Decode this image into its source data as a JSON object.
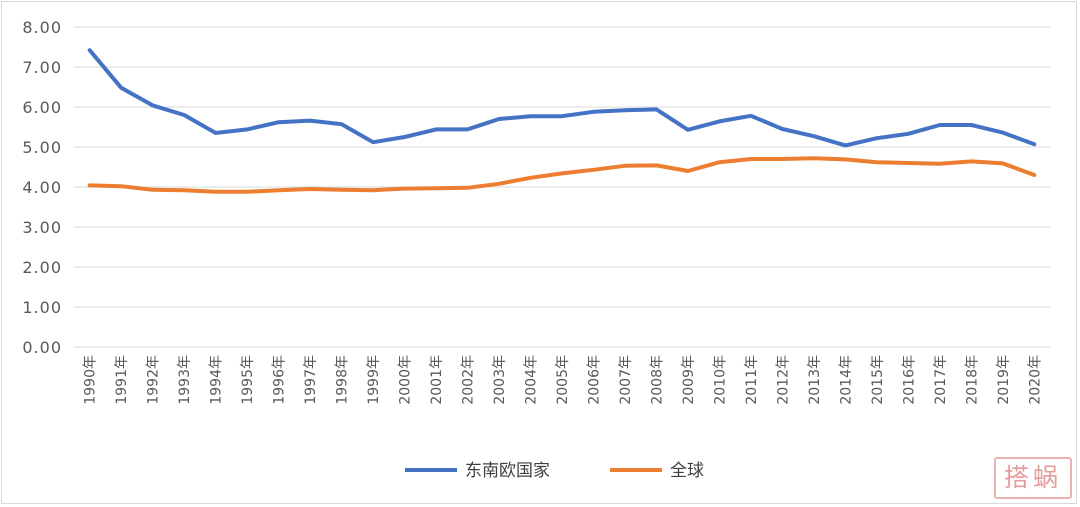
{
  "chart_data": {
    "type": "line",
    "categories": [
      "1990年",
      "1991年",
      "1992年",
      "1993年",
      "1994年",
      "1995年",
      "1996年",
      "1997年",
      "1998年",
      "1999年",
      "2000年",
      "2001年",
      "2002年",
      "2003年",
      "2004年",
      "2005年",
      "2006年",
      "2007年",
      "2008年",
      "2009年",
      "2010年",
      "2011年",
      "2012年",
      "2013年",
      "2014年",
      "2015年",
      "2016年",
      "2017年",
      "2018年",
      "2019年",
      "2020年"
    ],
    "series": [
      {
        "name": "东南欧国家",
        "color": "#4472c4",
        "values": [
          7.42,
          6.48,
          6.04,
          5.8,
          5.35,
          5.44,
          5.62,
          5.66,
          5.57,
          5.12,
          5.25,
          5.44,
          5.44,
          5.7,
          5.77,
          5.77,
          5.88,
          5.92,
          5.94,
          5.43,
          5.64,
          5.78,
          5.45,
          5.27,
          5.04,
          5.22,
          5.33,
          5.55,
          5.55,
          5.36,
          5.07
        ]
      },
      {
        "name": "全球",
        "color": "#ed7d31",
        "values": [
          4.04,
          4.02,
          3.93,
          3.92,
          3.88,
          3.88,
          3.92,
          3.95,
          3.93,
          3.92,
          3.96,
          3.97,
          3.98,
          4.08,
          4.23,
          4.34,
          4.43,
          4.53,
          4.54,
          4.4,
          4.62,
          4.7,
          4.7,
          4.72,
          4.69,
          4.62,
          4.6,
          4.58,
          4.64,
          4.59,
          4.3
        ]
      }
    ],
    "yticks": [
      "0.00",
      "1.00",
      "2.00",
      "3.00",
      "4.00",
      "5.00",
      "6.00",
      "7.00",
      "8.00"
    ],
    "ylim": [
      0,
      8
    ],
    "grid": true,
    "legend_position": "bottom"
  },
  "watermark": {
    "text": "搭蜗"
  }
}
